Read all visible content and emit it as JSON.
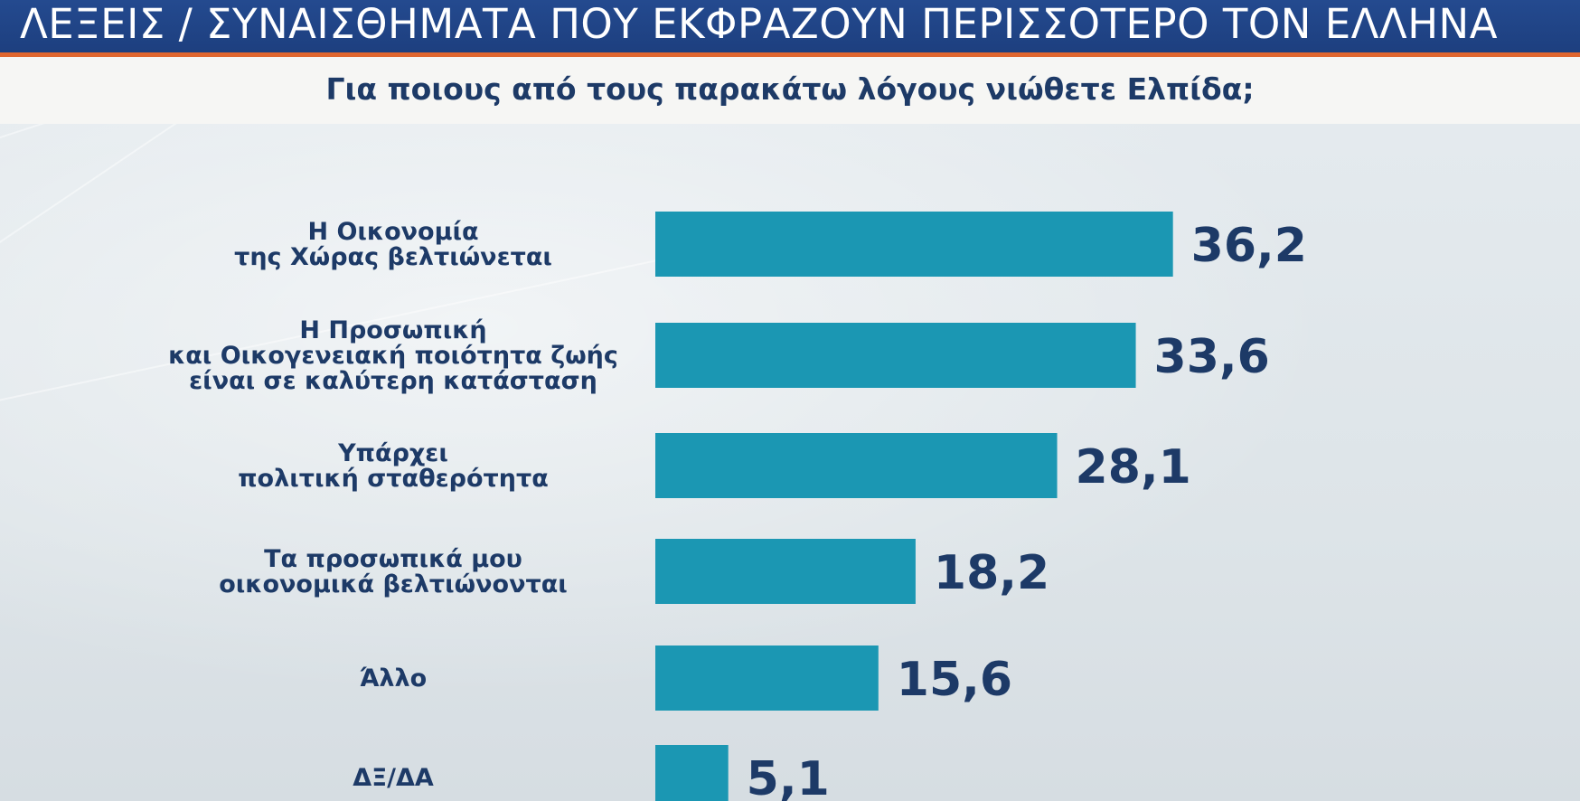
{
  "header": {
    "title": "ΛΕΞΕΙΣ / ΣΥΝΑΙΣΘΗΜΑΤΑ ΠΟΥ ΕΚΦΡΑΖΟΥΝ ΠΕΡΙΣΣΟΤΕΡΟ ΤΟΝ ΕΛΛΗΝΑ"
  },
  "colors": {
    "header_bg": "#1d3f7f",
    "accent_rule": "#e0662e",
    "bar": "#1b97b3",
    "text": "#1d3a67"
  },
  "chart_data": {
    "type": "bar",
    "orientation": "horizontal",
    "title": "Για ποιους από τους παρακάτω λόγους νιώθετε Ελπίδα;",
    "categories": [
      [
        "Η Οικονομία",
        "της Χώρας βελτιώνεται"
      ],
      [
        "Η Προσωπική",
        "και Οικογενειακή ποιότητα ζωής",
        "είναι σε καλύτερη κατάσταση"
      ],
      [
        "Υπάρχει",
        "πολιτική σταθερότητα"
      ],
      [
        "Τα προσωπικά μου",
        "οικονομικά βελτιώνονται"
      ],
      [
        "Άλλο"
      ],
      [
        "ΔΞ/ΔΑ"
      ]
    ],
    "values": [
      36.2,
      33.6,
      28.1,
      18.2,
      15.6,
      5.1
    ],
    "value_labels": [
      "36,2",
      "33,6",
      "28,1",
      "18,2",
      "15,6",
      "5,1"
    ],
    "grid": false,
    "legend": "none"
  }
}
